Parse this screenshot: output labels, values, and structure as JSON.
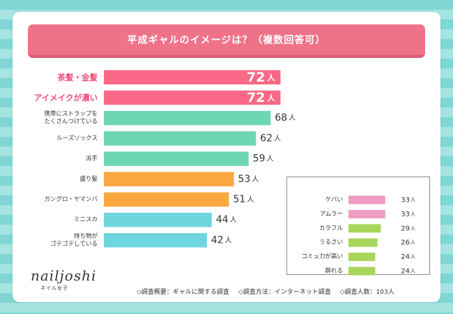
{
  "title": "平成ギャルのイメージは？（複数回答可）",
  "unit": "人",
  "colors": {
    "pink_strong": "#f96987",
    "pink_label": "#ee4f7a",
    "green": "#6fd6b4",
    "orange": "#f9a741",
    "blue": "#6fd6e0",
    "light_pink": "#ef9cc2",
    "light_green": "#a8d65a",
    "title_bg": "#f07289"
  },
  "chart_data": [
    {
      "type": "bar",
      "orientation": "horizontal",
      "title": "平成ギャルのイメージは？（複数回答可）",
      "unit": "人",
      "categories": [
        [
          "茶髪・金髪"
        ],
        [
          "アイメイクが濃い"
        ],
        [
          "携帯にストラップを",
          "たくさんつけている"
        ],
        [
          "ルーズソックス"
        ],
        [
          "派手"
        ],
        [
          "盛り髪"
        ],
        [
          "ガングロ・ヤマンバ"
        ],
        [
          "ミニスカ"
        ],
        [
          "持ち物が",
          "ゴテゴテしている"
        ]
      ],
      "values": [
        72,
        72,
        68,
        62,
        59,
        53,
        51,
        44,
        42
      ],
      "bar_colors": [
        "#f96987",
        "#f96987",
        "#6fd6b4",
        "#6fd6b4",
        "#6fd6b4",
        "#f9a741",
        "#f9a741",
        "#6fd6e0",
        "#6fd6e0"
      ],
      "label_inside": [
        true,
        true,
        false,
        false,
        false,
        false,
        false,
        false,
        false
      ],
      "highlight": [
        true,
        true,
        false,
        false,
        false,
        false,
        false,
        false,
        false
      ]
    },
    {
      "type": "bar",
      "orientation": "horizontal",
      "unit": "人",
      "categories": [
        "ケバい",
        "アムラー",
        "カラフル",
        "うるさい",
        "コミュ力が高い",
        "群れる"
      ],
      "values": [
        33,
        33,
        29,
        26,
        24,
        24
      ],
      "bar_colors": [
        "#ef9cc2",
        "#ef9cc2",
        "#a8d65a",
        "#a8d65a",
        "#a8d65a",
        "#a8d65a"
      ]
    }
  ],
  "logo": {
    "main": "nailjoshi",
    "sub": "ネイル女子"
  },
  "footer": {
    "overview": "◇調査概要：ギャルに関する調査",
    "method": "◇調査方法：インターネット調査",
    "count": "◇調査人数：103人"
  }
}
